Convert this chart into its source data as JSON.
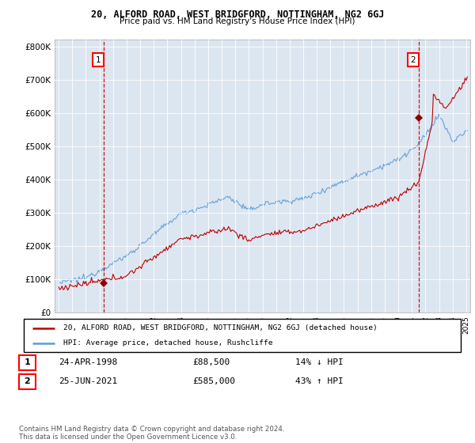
{
  "title": "20, ALFORD ROAD, WEST BRIDGFORD, NOTTINGHAM, NG2 6GJ",
  "subtitle": "Price paid vs. HM Land Registry's House Price Index (HPI)",
  "ylim": [
    0,
    820000
  ],
  "yticks": [
    0,
    100000,
    200000,
    300000,
    400000,
    500000,
    600000,
    700000,
    800000
  ],
  "ytick_labels": [
    "£0",
    "£100K",
    "£200K",
    "£300K",
    "£400K",
    "£500K",
    "£600K",
    "£700K",
    "£800K"
  ],
  "hpi_color": "#5b9bd5",
  "price_color": "#c00000",
  "marker_color": "#8b0000",
  "dashed_color": "#cc0000",
  "sale1_year": 1998.29,
  "sale1_price": 88500,
  "sale1_label": "1",
  "sale2_year": 2021.49,
  "sale2_price": 585000,
  "sale2_label": "2",
  "legend_line1": "20, ALFORD ROAD, WEST BRIDGFORD, NOTTINGHAM, NG2 6GJ (detached house)",
  "legend_line2": "HPI: Average price, detached house, Rushcliffe",
  "table_row1_num": "1",
  "table_row1_date": "24-APR-1998",
  "table_row1_price": "£88,500",
  "table_row1_hpi": "14% ↓ HPI",
  "table_row2_num": "2",
  "table_row2_date": "25-JUN-2021",
  "table_row2_price": "£585,000",
  "table_row2_hpi": "43% ↑ HPI",
  "footnote": "Contains HM Land Registry data © Crown copyright and database right 2024.\nThis data is licensed under the Open Government Licence v3.0.",
  "background_color": "#ffffff",
  "plot_bg_color": "#dce6f1",
  "grid_color": "#ffffff",
  "xlim_start": 1994.7,
  "xlim_end": 2025.3
}
